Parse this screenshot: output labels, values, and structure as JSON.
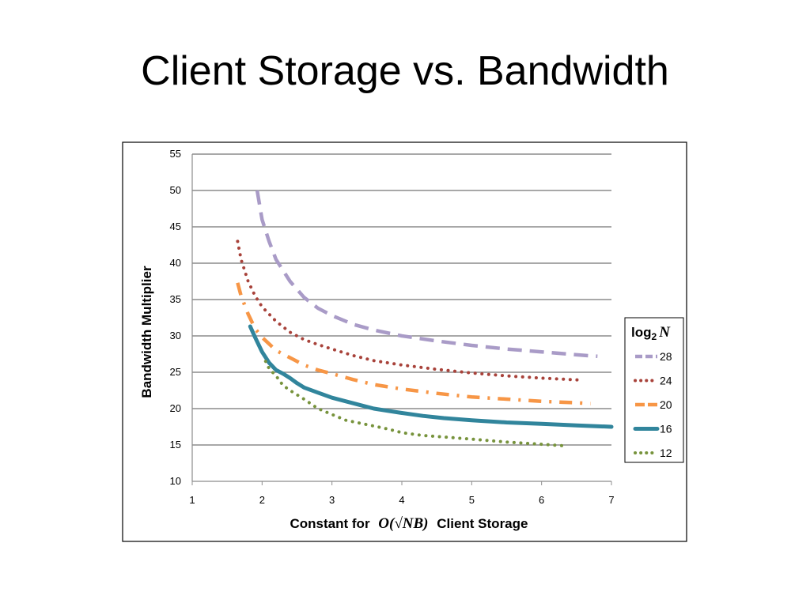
{
  "slide": {
    "title": "Client Storage vs. Bandwidth"
  },
  "chart_data": {
    "type": "line",
    "xlabel_prefix": "Constant for",
    "xlabel_math": "O(√NB)",
    "xlabel_suffix": "Client Storage",
    "ylabel": "Bandwidth Multiplier",
    "xlim": [
      1,
      7
    ],
    "ylim": [
      10,
      55
    ],
    "x_ticks": [
      "1",
      "2",
      "3",
      "4",
      "5",
      "6",
      "7"
    ],
    "y_ticks": [
      "10",
      "15",
      "20",
      "25",
      "30",
      "35",
      "40",
      "45",
      "50",
      "55"
    ],
    "grid": "horizontal",
    "legend_position": "right",
    "legend_title": "log2 N",
    "series": [
      {
        "name": "28",
        "color": "#a99bc7",
        "style": "dashed",
        "points": [
          [
            1.93,
            50
          ],
          [
            2.0,
            46
          ],
          [
            2.1,
            43
          ],
          [
            2.2,
            40.5
          ],
          [
            2.4,
            37.5
          ],
          [
            2.6,
            35.3
          ],
          [
            2.8,
            33.8
          ],
          [
            3.0,
            32.8
          ],
          [
            3.3,
            31.6
          ],
          [
            3.6,
            30.8
          ],
          [
            4.0,
            30.0
          ],
          [
            4.5,
            29.3
          ],
          [
            5.0,
            28.7
          ],
          [
            5.5,
            28.2
          ],
          [
            6.0,
            27.8
          ],
          [
            6.5,
            27.4
          ],
          [
            6.8,
            27.2
          ]
        ]
      },
      {
        "name": "24",
        "color": "#a8423a",
        "style": "dotted",
        "points": [
          [
            1.65,
            43
          ],
          [
            1.7,
            40.5
          ],
          [
            1.8,
            37.5
          ],
          [
            1.9,
            35.5
          ],
          [
            2.0,
            34.0
          ],
          [
            2.2,
            32.0
          ],
          [
            2.4,
            30.5
          ],
          [
            2.6,
            29.5
          ],
          [
            2.8,
            28.8
          ],
          [
            3.0,
            28.2
          ],
          [
            3.3,
            27.3
          ],
          [
            3.6,
            26.6
          ],
          [
            4.0,
            26.0
          ],
          [
            4.5,
            25.4
          ],
          [
            5.0,
            24.9
          ],
          [
            5.5,
            24.5
          ],
          [
            6.0,
            24.2
          ],
          [
            6.6,
            23.9
          ]
        ]
      },
      {
        "name": "20",
        "color": "#f79646",
        "style": "dashdot",
        "points": [
          [
            1.65,
            37.3
          ],
          [
            1.7,
            35.5
          ],
          [
            1.8,
            33.0
          ],
          [
            1.9,
            31.0
          ],
          [
            2.0,
            29.8
          ],
          [
            2.2,
            28.0
          ],
          [
            2.4,
            27.0
          ],
          [
            2.6,
            26.0
          ],
          [
            2.8,
            25.3
          ],
          [
            3.0,
            24.8
          ],
          [
            3.3,
            24.0
          ],
          [
            3.6,
            23.3
          ],
          [
            4.0,
            22.7
          ],
          [
            4.5,
            22.1
          ],
          [
            5.0,
            21.6
          ],
          [
            5.5,
            21.3
          ],
          [
            6.0,
            21.0
          ],
          [
            6.5,
            20.8
          ],
          [
            6.7,
            20.7
          ]
        ]
      },
      {
        "name": "16",
        "color": "#31859c",
        "style": "solid",
        "points": [
          [
            1.83,
            31.3
          ],
          [
            1.9,
            29.8
          ],
          [
            2.0,
            27.8
          ],
          [
            2.1,
            26.3
          ],
          [
            2.2,
            25.3
          ],
          [
            2.3,
            24.8
          ],
          [
            2.4,
            24.2
          ],
          [
            2.5,
            23.5
          ],
          [
            2.6,
            22.9
          ],
          [
            2.8,
            22.2
          ],
          [
            3.0,
            21.5
          ],
          [
            3.2,
            21.0
          ],
          [
            3.4,
            20.5
          ],
          [
            3.6,
            20.0
          ],
          [
            3.8,
            19.7
          ],
          [
            4.0,
            19.4
          ],
          [
            4.3,
            19.0
          ],
          [
            4.6,
            18.7
          ],
          [
            5.0,
            18.4
          ],
          [
            5.5,
            18.1
          ],
          [
            6.0,
            17.9
          ],
          [
            6.5,
            17.7
          ],
          [
            7.0,
            17.5
          ]
        ]
      },
      {
        "name": "12",
        "color": "#77933c",
        "style": "dotted",
        "points": [
          [
            2.05,
            26.5
          ],
          [
            2.1,
            25.5
          ],
          [
            2.2,
            24.5
          ],
          [
            2.3,
            23.2
          ],
          [
            2.4,
            22.5
          ],
          [
            2.6,
            21.3
          ],
          [
            2.8,
            20.0
          ],
          [
            3.0,
            19.2
          ],
          [
            3.2,
            18.4
          ],
          [
            3.5,
            17.8
          ],
          [
            3.8,
            17.2
          ],
          [
            4.0,
            16.7
          ],
          [
            4.3,
            16.3
          ],
          [
            4.6,
            16.1
          ],
          [
            5.0,
            15.8
          ],
          [
            5.5,
            15.4
          ],
          [
            6.0,
            15.1
          ],
          [
            6.3,
            14.9
          ]
        ]
      }
    ]
  }
}
